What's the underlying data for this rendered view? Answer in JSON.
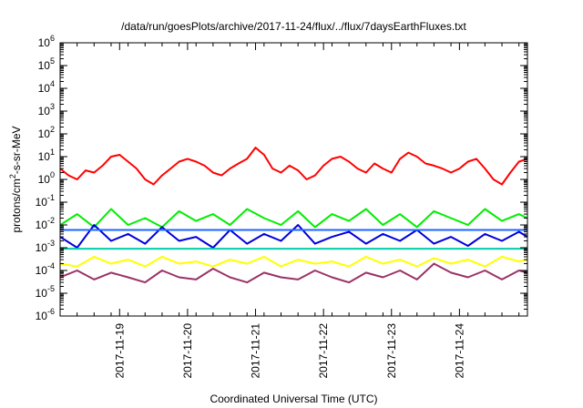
{
  "chart_data": {
    "type": "line",
    "title": "/data/run/goesPlots/archive/2017-11-24/flux/../flux/7daysEarthFluxes.txt",
    "xlabel": "Coordinated Universal Time (UTC)",
    "ylabel_main": "protons/cm",
    "ylabel_sup": "2",
    "ylabel_rest": "-s-sr-MeV",
    "y_scale": "log",
    "ylim": [
      1e-06,
      1000000.0
    ],
    "y_ticks": [
      {
        "value": 1000000.0,
        "base": "10",
        "exp": "6"
      },
      {
        "value": 100000.0,
        "base": "10",
        "exp": "5"
      },
      {
        "value": 10000.0,
        "base": "10",
        "exp": "4"
      },
      {
        "value": 1000.0,
        "base": "10",
        "exp": "3"
      },
      {
        "value": 100.0,
        "base": "10",
        "exp": "2"
      },
      {
        "value": 10.0,
        "base": "10",
        "exp": "1"
      },
      {
        "value": 1.0,
        "base": "10",
        "exp": "0"
      },
      {
        "value": 0.1,
        "base": "10",
        "exp": "-1"
      },
      {
        "value": 0.01,
        "base": "10",
        "exp": "-2"
      },
      {
        "value": 0.001,
        "base": "10",
        "exp": "-3"
      },
      {
        "value": 0.0001,
        "base": "10",
        "exp": "-4"
      },
      {
        "value": 1e-05,
        "base": "10",
        "exp": "-5"
      },
      {
        "value": 1e-06,
        "base": "10",
        "exp": "-6"
      }
    ],
    "xlim": [
      "2017-11-18 03:00",
      "2017-11-25 00:00"
    ],
    "x_ticks": [
      "2017-11-19",
      "2017-11-20",
      "2017-11-21",
      "2017-11-22",
      "2017-11-23",
      "2017-11-24"
    ],
    "grid": false,
    "series": [
      {
        "color": "#ff0000",
        "x": [
          "2017-11-18 03:00",
          "2017-11-18 06:00",
          "2017-11-18 09:00",
          "2017-11-18 12:00",
          "2017-11-18 15:00",
          "2017-11-18 18:00",
          "2017-11-18 21:00",
          "2017-11-19 00:00",
          "2017-11-19 03:00",
          "2017-11-19 06:00",
          "2017-11-19 09:00",
          "2017-11-19 12:00",
          "2017-11-19 15:00",
          "2017-11-19 18:00",
          "2017-11-19 21:00",
          "2017-11-20 00:00",
          "2017-11-20 03:00",
          "2017-11-20 06:00",
          "2017-11-20 09:00",
          "2017-11-20 12:00",
          "2017-11-20 15:00",
          "2017-11-20 18:00",
          "2017-11-20 21:00",
          "2017-11-21 00:00",
          "2017-11-21 03:00",
          "2017-11-21 06:00",
          "2017-11-21 09:00",
          "2017-11-21 12:00",
          "2017-11-21 15:00",
          "2017-11-21 18:00",
          "2017-11-21 21:00",
          "2017-11-22 00:00",
          "2017-11-22 03:00",
          "2017-11-22 06:00",
          "2017-11-22 09:00",
          "2017-11-22 12:00",
          "2017-11-22 15:00",
          "2017-11-22 18:00",
          "2017-11-22 21:00",
          "2017-11-23 00:00",
          "2017-11-23 03:00",
          "2017-11-23 06:00",
          "2017-11-23 09:00",
          "2017-11-23 12:00",
          "2017-11-23 15:00",
          "2017-11-23 18:00",
          "2017-11-23 21:00",
          "2017-11-24 00:00",
          "2017-11-24 03:00",
          "2017-11-24 06:00",
          "2017-11-24 09:00",
          "2017-11-24 12:00",
          "2017-11-24 15:00",
          "2017-11-24 18:00",
          "2017-11-24 21:00",
          "2017-11-25 00:00"
        ],
        "values": [
          3,
          1.5,
          1,
          2.5,
          2,
          4,
          10,
          12,
          6,
          3,
          1,
          0.6,
          1.5,
          3,
          6,
          8,
          6,
          4,
          2,
          1.5,
          3,
          5,
          8,
          25,
          12,
          3,
          2,
          4,
          2.5,
          1,
          1.5,
          4,
          8,
          10,
          6,
          3,
          2,
          5,
          3,
          2,
          8,
          15,
          10,
          5,
          4,
          3,
          2,
          3,
          6,
          8,
          3,
          1,
          0.6,
          2,
          6,
          8
        ]
      },
      {
        "color": "#00ee00",
        "x": [
          "2017-11-18 03:00",
          "2017-11-18 09:00",
          "2017-11-18 15:00",
          "2017-11-18 21:00",
          "2017-11-19 03:00",
          "2017-11-19 09:00",
          "2017-11-19 15:00",
          "2017-11-19 21:00",
          "2017-11-20 03:00",
          "2017-11-20 09:00",
          "2017-11-20 15:00",
          "2017-11-20 21:00",
          "2017-11-21 03:00",
          "2017-11-21 09:00",
          "2017-11-21 15:00",
          "2017-11-21 21:00",
          "2017-11-22 03:00",
          "2017-11-22 09:00",
          "2017-11-22 15:00",
          "2017-11-22 21:00",
          "2017-11-23 03:00",
          "2017-11-23 09:00",
          "2017-11-23 15:00",
          "2017-11-23 21:00",
          "2017-11-24 03:00",
          "2017-11-24 09:00",
          "2017-11-24 15:00",
          "2017-11-24 21:00",
          "2017-11-25 00:00"
        ],
        "values": [
          0.01,
          0.03,
          0.008,
          0.05,
          0.01,
          0.02,
          0.008,
          0.04,
          0.015,
          0.03,
          0.01,
          0.05,
          0.02,
          0.01,
          0.04,
          0.008,
          0.03,
          0.015,
          0.05,
          0.01,
          0.03,
          0.008,
          0.04,
          0.02,
          0.01,
          0.05,
          0.015,
          0.03,
          0.02
        ]
      },
      {
        "color": "#0000dd",
        "x": [
          "2017-11-18 03:00",
          "2017-11-18 09:00",
          "2017-11-18 15:00",
          "2017-11-18 21:00",
          "2017-11-19 03:00",
          "2017-11-19 09:00",
          "2017-11-19 15:00",
          "2017-11-19 21:00",
          "2017-11-20 03:00",
          "2017-11-20 09:00",
          "2017-11-20 15:00",
          "2017-11-20 21:00",
          "2017-11-21 03:00",
          "2017-11-21 09:00",
          "2017-11-21 15:00",
          "2017-11-21 21:00",
          "2017-11-22 03:00",
          "2017-11-22 09:00",
          "2017-11-22 15:00",
          "2017-11-22 21:00",
          "2017-11-23 03:00",
          "2017-11-23 09:00",
          "2017-11-23 15:00",
          "2017-11-23 21:00",
          "2017-11-24 03:00",
          "2017-11-24 09:00",
          "2017-11-24 15:00",
          "2017-11-24 21:00",
          "2017-11-25 00:00"
        ],
        "values": [
          0.003,
          0.001,
          0.01,
          0.002,
          0.004,
          0.0015,
          0.008,
          0.002,
          0.003,
          0.001,
          0.006,
          0.0015,
          0.004,
          0.002,
          0.01,
          0.0015,
          0.003,
          0.005,
          0.0015,
          0.004,
          0.002,
          0.006,
          0.0015,
          0.003,
          0.0012,
          0.004,
          0.002,
          0.005,
          0.003
        ]
      },
      {
        "color": "#1f66ff",
        "x": [
          "2017-11-18 03:00",
          "2017-11-25 00:00"
        ],
        "values": [
          0.006,
          0.006
        ]
      },
      {
        "color": "#00ccaa",
        "x": [
          "2017-11-18 03:00",
          "2017-11-25 00:00"
        ],
        "values": [
          0.0009,
          0.0009
        ]
      },
      {
        "color": "#ffff00",
        "x": [
          "2017-11-18 03:00",
          "2017-11-18 09:00",
          "2017-11-18 15:00",
          "2017-11-18 21:00",
          "2017-11-19 03:00",
          "2017-11-19 09:00",
          "2017-11-19 15:00",
          "2017-11-19 21:00",
          "2017-11-20 03:00",
          "2017-11-20 09:00",
          "2017-11-20 15:00",
          "2017-11-20 21:00",
          "2017-11-21 03:00",
          "2017-11-21 09:00",
          "2017-11-21 15:00",
          "2017-11-21 21:00",
          "2017-11-22 03:00",
          "2017-11-22 09:00",
          "2017-11-22 15:00",
          "2017-11-22 21:00",
          "2017-11-23 03:00",
          "2017-11-23 09:00",
          "2017-11-23 15:00",
          "2017-11-23 21:00",
          "2017-11-24 03:00",
          "2017-11-24 09:00",
          "2017-11-24 15:00",
          "2017-11-24 21:00",
          "2017-11-25 00:00"
        ],
        "values": [
          0.0002,
          0.00015,
          0.0004,
          0.0002,
          0.0003,
          0.00015,
          0.0004,
          0.0002,
          0.00025,
          0.00015,
          0.0003,
          0.0002,
          0.0004,
          0.00015,
          0.0003,
          0.0002,
          0.00025,
          0.00015,
          0.0004,
          0.0002,
          0.0003,
          0.00015,
          0.00035,
          0.0002,
          0.0003,
          0.00015,
          0.0004,
          0.00025,
          0.0003
        ]
      },
      {
        "color": "#993366",
        "x": [
          "2017-11-18 03:00",
          "2017-11-18 09:00",
          "2017-11-18 15:00",
          "2017-11-18 21:00",
          "2017-11-19 03:00",
          "2017-11-19 09:00",
          "2017-11-19 15:00",
          "2017-11-19 21:00",
          "2017-11-20 03:00",
          "2017-11-20 09:00",
          "2017-11-20 15:00",
          "2017-11-20 21:00",
          "2017-11-21 03:00",
          "2017-11-21 09:00",
          "2017-11-21 15:00",
          "2017-11-21 21:00",
          "2017-11-22 03:00",
          "2017-11-22 09:00",
          "2017-11-22 15:00",
          "2017-11-22 21:00",
          "2017-11-23 03:00",
          "2017-11-23 09:00",
          "2017-11-23 15:00",
          "2017-11-23 21:00",
          "2017-11-24 03:00",
          "2017-11-24 09:00",
          "2017-11-24 15:00",
          "2017-11-24 21:00",
          "2017-11-25 00:00"
        ],
        "values": [
          5e-05,
          0.0001,
          4e-05,
          8e-05,
          5e-05,
          3e-05,
          0.0001,
          5e-05,
          4e-05,
          0.00012,
          5e-05,
          3e-05,
          8e-05,
          5e-05,
          4e-05,
          0.0001,
          5e-05,
          3e-05,
          8e-05,
          5e-05,
          0.0001,
          4e-05,
          0.0002,
          8e-05,
          5e-05,
          0.0001,
          4e-05,
          0.0001,
          8e-05
        ]
      }
    ]
  }
}
